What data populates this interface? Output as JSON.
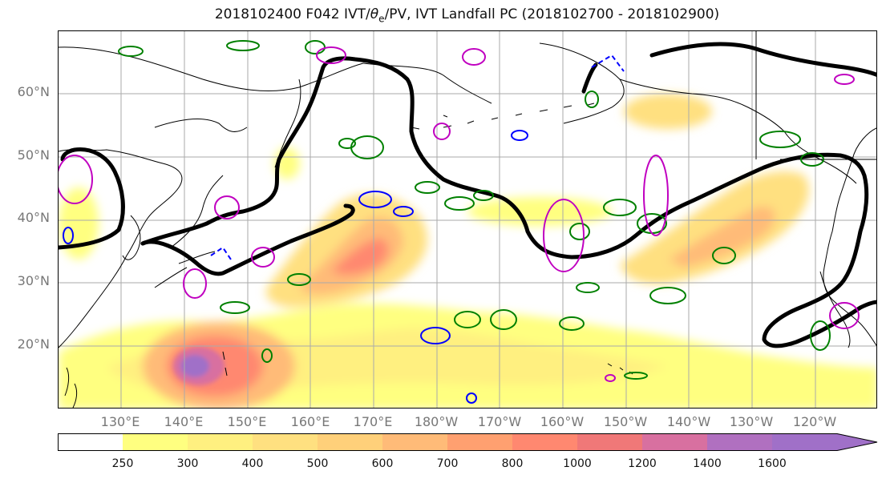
{
  "title": {
    "prefix": "2018102400 F042 IVT/",
    "theta": "θ",
    "theta_sub": "e",
    "suffix": "/PV, IVT Landfall PC (2018102700 - 2018102900)"
  },
  "map": {
    "lat_labels": [
      "60°N",
      "50°N",
      "40°N",
      "30°N",
      "20°N"
    ],
    "lon_labels": [
      "130°E",
      "140°E",
      "150°E",
      "160°E",
      "170°E",
      "180°W",
      "170°W",
      "160°W",
      "150°W",
      "140°W",
      "130°W",
      "120°W"
    ],
    "extent": {
      "lon_min": 120,
      "lon_max": 250,
      "lat_min": 10,
      "lat_max": 70
    },
    "contour_colors": {
      "theta_e": "#000000",
      "pv_positive": "#008000",
      "pv_negative": "#0000ff",
      "landfall": "#c000c0"
    }
  },
  "colorbar": {
    "levels": [
      "250",
      "300",
      "400",
      "500",
      "600",
      "700",
      "800",
      "1000",
      "1200",
      "1400",
      "1600"
    ],
    "colors": [
      "#ffffff",
      "#ffff80",
      "#fff080",
      "#ffe080",
      "#ffd07a",
      "#ffbb78",
      "#ffa070",
      "#ff8870",
      "#f07878",
      "#d870a0",
      "#b070c0",
      "#a070c8"
    ]
  }
}
